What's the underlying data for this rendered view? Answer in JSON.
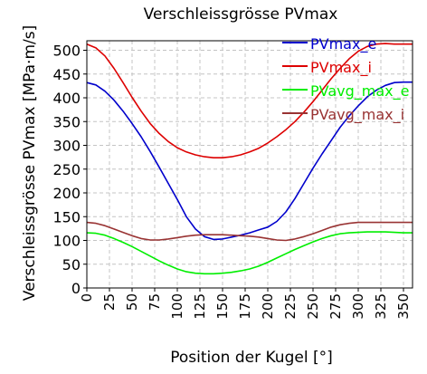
{
  "chart_data": {
    "type": "line",
    "title": "Verschleissgrösse PVmax",
    "xlabel": "Position der Kugel [°]",
    "ylabel": "Verschleissgrösse PVmax [MPa·m/s]",
    "xlim": [
      0,
      360
    ],
    "ylim": [
      0,
      520
    ],
    "xticks": [
      "0",
      "25",
      "50",
      "75",
      "100",
      "125",
      "150",
      "175",
      "200",
      "225",
      "250",
      "275",
      "300",
      "325",
      "350"
    ],
    "yticks": [
      "0",
      "50",
      "100",
      "150",
      "200",
      "250",
      "300",
      "350",
      "400",
      "450",
      "500"
    ],
    "grid": true,
    "legend": "top-right",
    "series": [
      {
        "name": "PVmax_e",
        "color": "#0000cc",
        "x": [
          0,
          10,
          20,
          30,
          40,
          50,
          60,
          70,
          80,
          90,
          100,
          110,
          120,
          130,
          140,
          150,
          160,
          170,
          180,
          190,
          200,
          210,
          220,
          230,
          240,
          250,
          260,
          270,
          280,
          290,
          300,
          310,
          320,
          330,
          340,
          350,
          360
        ],
        "values": [
          432,
          427,
          414,
          395,
          372,
          346,
          318,
          287,
          254,
          220,
          186,
          150,
          124,
          108,
          102,
          103,
          107,
          111,
          116,
          122,
          128,
          140,
          160,
          188,
          220,
          252,
          282,
          310,
          338,
          362,
          383,
          402,
          416,
          426,
          432,
          433,
          433
        ]
      },
      {
        "name": "PVmax_i",
        "color": "#dd0000",
        "x": [
          0,
          10,
          20,
          30,
          40,
          50,
          60,
          70,
          80,
          90,
          100,
          110,
          120,
          130,
          140,
          150,
          160,
          170,
          180,
          190,
          200,
          210,
          220,
          230,
          240,
          250,
          260,
          270,
          280,
          290,
          300,
          310,
          320,
          330,
          340,
          350,
          360
        ],
        "values": [
          513,
          505,
          488,
          462,
          432,
          401,
          372,
          346,
          325,
          308,
          295,
          286,
          280,
          276,
          274,
          274,
          276,
          280,
          286,
          294,
          305,
          318,
          333,
          350,
          370,
          392,
          416,
          440,
          462,
          482,
          498,
          508,
          513,
          514,
          513,
          513,
          513
        ]
      },
      {
        "name": "PVavg_max_e",
        "color": "#00ee00",
        "x": [
          0,
          10,
          20,
          30,
          40,
          50,
          60,
          70,
          80,
          90,
          100,
          110,
          120,
          130,
          140,
          150,
          160,
          170,
          180,
          190,
          200,
          210,
          220,
          230,
          240,
          250,
          260,
          270,
          280,
          290,
          300,
          310,
          320,
          330,
          340,
          350,
          360
        ],
        "values": [
          116,
          115,
          111,
          104,
          96,
          87,
          77,
          67,
          57,
          48,
          40,
          34,
          31,
          30,
          30,
          31,
          33,
          36,
          40,
          46,
          54,
          63,
          72,
          81,
          89,
          97,
          104,
          110,
          114,
          116,
          117,
          118,
          118,
          118,
          117,
          116,
          116
        ]
      },
      {
        "name": "PVavg_max_i",
        "color": "#993333",
        "x": [
          0,
          10,
          20,
          30,
          40,
          50,
          60,
          70,
          80,
          90,
          100,
          110,
          120,
          130,
          140,
          150,
          160,
          170,
          180,
          190,
          200,
          210,
          220,
          230,
          240,
          250,
          260,
          270,
          280,
          290,
          300,
          310,
          320,
          330,
          340,
          350,
          360
        ],
        "values": [
          138,
          136,
          131,
          124,
          117,
          110,
          104,
          101,
          101,
          103,
          106,
          109,
          111,
          112,
          112,
          112,
          111,
          110,
          109,
          107,
          104,
          101,
          100,
          103,
          108,
          114,
          121,
          128,
          133,
          136,
          138,
          138,
          138,
          138,
          138,
          138,
          138
        ]
      }
    ]
  }
}
